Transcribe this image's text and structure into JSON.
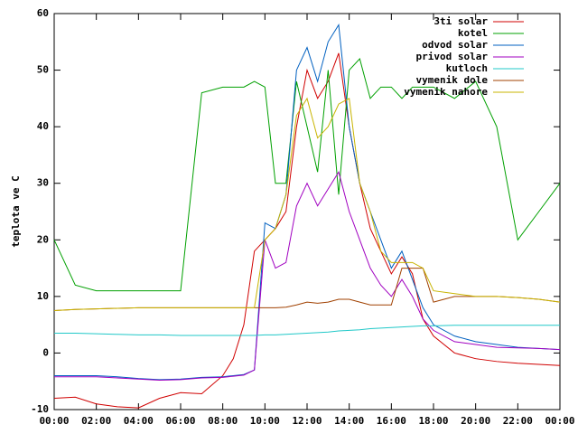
{
  "chart_data": {
    "type": "line",
    "y_label": "teplota ve C",
    "x": [
      0,
      1,
      2,
      3,
      4,
      5,
      6,
      7,
      8,
      8.5,
      9,
      9.5,
      10,
      10.5,
      11,
      11.5,
      12,
      12.5,
      13,
      13.5,
      14,
      14.5,
      15,
      15.5,
      16,
      16.5,
      17,
      17.5,
      18,
      19,
      20,
      21,
      22,
      23,
      24
    ],
    "series": [
      {
        "name": "3ti solar",
        "color": "#d00000",
        "values": [
          -8,
          -7.8,
          -9,
          -9.5,
          -9.7,
          -8,
          -7,
          -7.2,
          -4,
          -1,
          5,
          18,
          20,
          22,
          25,
          40,
          50,
          45,
          48,
          53,
          40,
          30,
          22,
          18,
          14,
          17,
          14,
          6,
          3,
          0,
          -1,
          -1.5,
          -1.8,
          -2,
          -2.2
        ]
      },
      {
        "name": "kotel",
        "color": "#00a000",
        "values": [
          20,
          12,
          11,
          11,
          11,
          11,
          11,
          46,
          47,
          47,
          47,
          48,
          47,
          30,
          30,
          48,
          40,
          32,
          50,
          28,
          50,
          52,
          45,
          47,
          47,
          45,
          47,
          47,
          47,
          45,
          48,
          40,
          20,
          25,
          30
        ]
      },
      {
        "name": "odvod solar",
        "color": "#0060c0",
        "values": [
          -4,
          -4,
          -4,
          -4.2,
          -4.5,
          -4.7,
          -4.6,
          -4.3,
          -4.2,
          -4,
          -3.8,
          -3,
          23,
          22,
          28,
          50,
          54,
          48,
          55,
          58,
          40,
          30,
          25,
          20,
          15,
          18,
          13,
          8,
          5,
          3,
          2,
          1.5,
          1,
          0.8,
          0.6
        ]
      },
      {
        "name": "privod solar",
        "color": "#a000c0",
        "values": [
          -4.2,
          -4.2,
          -4.2,
          -4.4,
          -4.6,
          -4.8,
          -4.7,
          -4.4,
          -4.3,
          -4.1,
          -3.9,
          -3,
          20,
          15,
          16,
          26,
          30,
          26,
          29,
          32,
          25,
          20,
          15,
          12,
          10,
          13,
          10,
          6,
          4,
          2,
          1.5,
          1,
          0.9,
          0.8,
          0.6
        ]
      },
      {
        "name": "kutloch",
        "color": "#20c8c8",
        "values": [
          3.5,
          3.5,
          3.4,
          3.3,
          3.2,
          3.2,
          3.1,
          3.1,
          3.1,
          3.1,
          3.1,
          3.1,
          3.2,
          3.2,
          3.3,
          3.4,
          3.5,
          3.6,
          3.7,
          3.9,
          4,
          4.1,
          4.3,
          4.4,
          4.5,
          4.6,
          4.7,
          4.8,
          4.8,
          4.9,
          4.9,
          4.9,
          4.9,
          4.9,
          4.9
        ]
      },
      {
        "name": "vymenik dole",
        "color": "#a04000",
        "values": [
          7.5,
          7.7,
          7.8,
          7.9,
          8,
          8,
          8,
          8,
          8,
          8,
          8,
          8,
          8,
          8,
          8.1,
          8.5,
          9,
          8.8,
          9,
          9.5,
          9.5,
          9,
          8.5,
          8.5,
          8.5,
          15,
          15,
          15,
          9,
          10,
          10,
          10,
          9.8,
          9.5,
          9
        ]
      },
      {
        "name": "vymenik nahore",
        "color": "#c8b400",
        "values": [
          7.5,
          7.7,
          7.8,
          7.9,
          8,
          8,
          8,
          8,
          8,
          8,
          8,
          8,
          20,
          22,
          28,
          42,
          45,
          38,
          40,
          44,
          45,
          30,
          25,
          18,
          16,
          16,
          16,
          15,
          11,
          10.5,
          10,
          10,
          9.8,
          9.5,
          9
        ]
      }
    ],
    "xlim": [
      0,
      24
    ],
    "xticks": [
      {
        "value": 0,
        "label": "00:00"
      },
      {
        "value": 2,
        "label": "02:00"
      },
      {
        "value": 4,
        "label": "04:00"
      },
      {
        "value": 6,
        "label": "06:00"
      },
      {
        "value": 8,
        "label": "08:00"
      },
      {
        "value": 10,
        "label": "10:00"
      },
      {
        "value": 12,
        "label": "12:00"
      },
      {
        "value": 14,
        "label": "14:00"
      },
      {
        "value": 16,
        "label": "16:00"
      },
      {
        "value": 18,
        "label": "18:00"
      },
      {
        "value": 20,
        "label": "20:00"
      },
      {
        "value": 22,
        "label": "22:00"
      },
      {
        "value": 24,
        "label": "00:00"
      }
    ],
    "ylim": [
      -10,
      60
    ],
    "yticks": [
      -10,
      0,
      10,
      20,
      30,
      40,
      50,
      60
    ],
    "grid": false,
    "legend": "top-right"
  }
}
